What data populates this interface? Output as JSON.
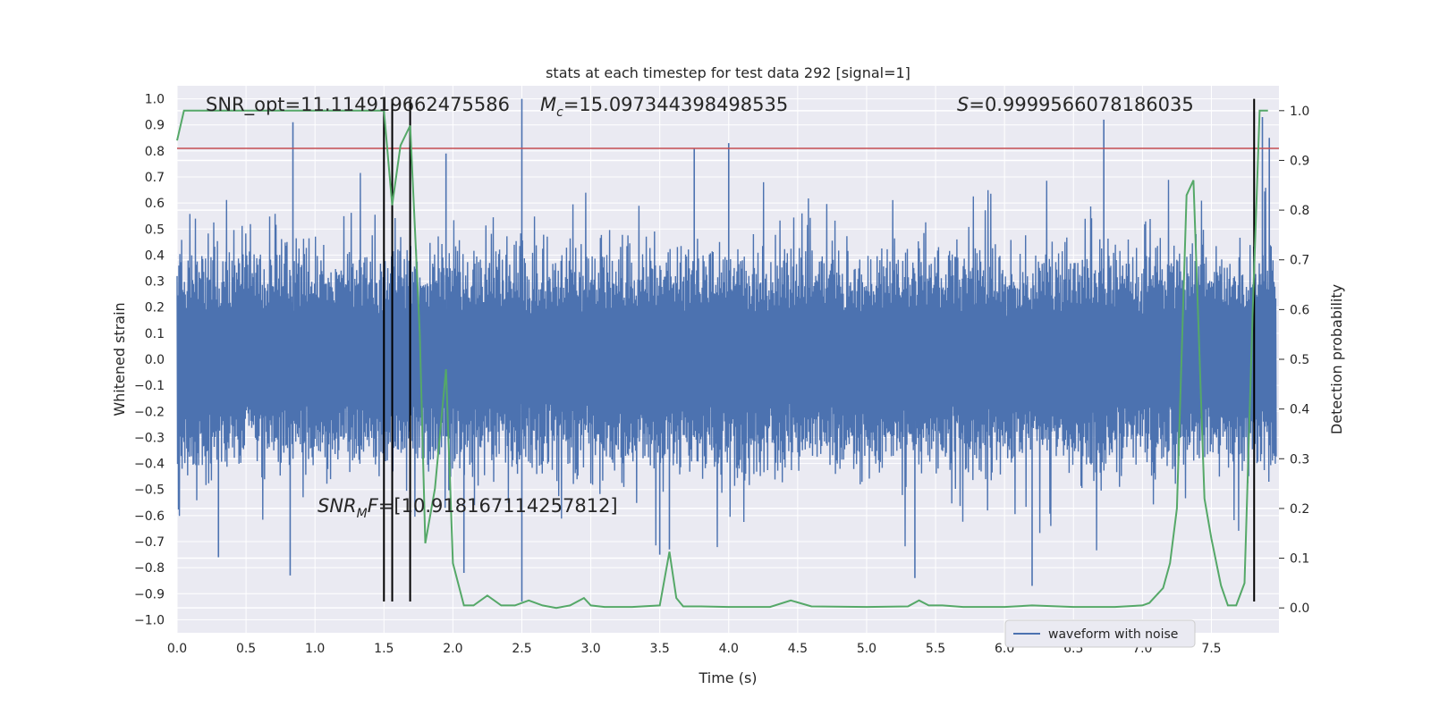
{
  "chart_data": {
    "type": "line",
    "title": "stats at each timestep for test data 292 [signal=1]",
    "xlabel": "Time (s)",
    "ylabel": "Whitened strain",
    "y2label": "Detection probability",
    "xlim": [
      0.0,
      7.99
    ],
    "ylim": [
      -1.05,
      1.05
    ],
    "y2lim": [
      -0.05,
      1.05
    ],
    "xticks": [
      "0.0",
      "0.5",
      "1.0",
      "1.5",
      "2.0",
      "2.5",
      "3.0",
      "3.5",
      "4.0",
      "4.5",
      "5.0",
      "5.5",
      "6.0",
      "6.5",
      "7.0",
      "7.5"
    ],
    "yticks": [
      "1.0",
      "0.9",
      "0.8",
      "0.7",
      "0.6",
      "0.5",
      "0.4",
      "0.3",
      "0.2",
      "0.1",
      "0.0",
      "−0.1",
      "−0.2",
      "−0.3",
      "−0.4",
      "−0.5",
      "−0.6",
      "−0.7",
      "−0.8",
      "−0.9",
      "−1.0"
    ],
    "y2ticks": [
      "1.0",
      "0.9",
      "0.8",
      "0.7",
      "0.6",
      "0.5",
      "0.4",
      "0.3",
      "0.2",
      "0.1",
      "0.0"
    ],
    "grid": true,
    "legend_position": "lower-right",
    "annotations": {
      "snr_opt": "SNR_opt=11.114919662475586",
      "mc": "=15.097344398498535",
      "mc_symbol": "M",
      "mc_sub": "c",
      "s": "=0.9999566078186035",
      "s_symbol": "S",
      "snr_mf": "=[10.918167114257812]",
      "snr_mf_symbol": "SNR",
      "snr_mf_sub": "M",
      "snr_mf_tail": "F"
    },
    "threshold_line": {
      "y": 0.81,
      "color": "#c44e52"
    },
    "vertical_lines": [
      1.5,
      1.56,
      1.69,
      7.81
    ],
    "vertical_line_range": [
      -0.93,
      1.0
    ],
    "series": [
      {
        "name": "waveform with noise",
        "axis": "left",
        "color": "#4c72b0",
        "generated": "dense noise",
        "peak_points": [
          [
            0.84,
            0.91
          ],
          [
            0.82,
            -0.83
          ],
          [
            1.95,
            0.79
          ],
          [
            2.08,
            -0.82
          ],
          [
            2.5,
            1.0
          ],
          [
            2.5,
            -0.93
          ],
          [
            3.5,
            -0.75
          ],
          [
            3.57,
            -0.73
          ],
          [
            3.75,
            0.81
          ],
          [
            5.35,
            -0.84
          ],
          [
            6.2,
            -0.87
          ],
          [
            6.72,
            0.92
          ],
          [
            7.87,
            0.93
          ],
          [
            7.92,
            0.85
          ],
          [
            0.3,
            -0.76
          ],
          [
            4.0,
            0.83
          ]
        ]
      },
      {
        "name": "detection probability",
        "axis": "right",
        "color": "#55a868",
        "x": [
          0.0,
          0.05,
          1.5,
          1.56,
          1.62,
          1.69,
          1.76,
          1.8,
          1.87,
          1.95,
          2.0,
          2.08,
          2.15,
          2.25,
          2.35,
          2.45,
          2.55,
          2.65,
          2.75,
          2.85,
          2.95,
          3.0,
          3.1,
          3.3,
          3.5,
          3.57,
          3.62,
          3.67,
          3.8,
          4.0,
          4.3,
          4.45,
          4.6,
          5.0,
          5.3,
          5.38,
          5.45,
          5.55,
          5.7,
          6.0,
          6.2,
          6.5,
          6.8,
          7.0,
          7.05,
          7.15,
          7.2,
          7.25,
          7.32,
          7.37,
          7.45,
          7.5,
          7.57,
          7.62,
          7.68,
          7.74,
          7.8,
          7.85,
          7.91
        ],
        "y": [
          0.94,
          1.0,
          1.0,
          0.81,
          0.93,
          0.97,
          0.55,
          0.13,
          0.24,
          0.48,
          0.09,
          0.005,
          0.005,
          0.025,
          0.005,
          0.005,
          0.015,
          0.005,
          0.0,
          0.005,
          0.02,
          0.005,
          0.002,
          0.002,
          0.005,
          0.113,
          0.02,
          0.003,
          0.003,
          0.002,
          0.002,
          0.015,
          0.003,
          0.002,
          0.003,
          0.015,
          0.005,
          0.005,
          0.002,
          0.002,
          0.005,
          0.002,
          0.002,
          0.005,
          0.01,
          0.04,
          0.09,
          0.2,
          0.83,
          0.86,
          0.22,
          0.14,
          0.045,
          0.005,
          0.005,
          0.05,
          0.6,
          1.0,
          1.0
        ]
      }
    ]
  },
  "legend": {
    "label": "waveform with noise"
  }
}
